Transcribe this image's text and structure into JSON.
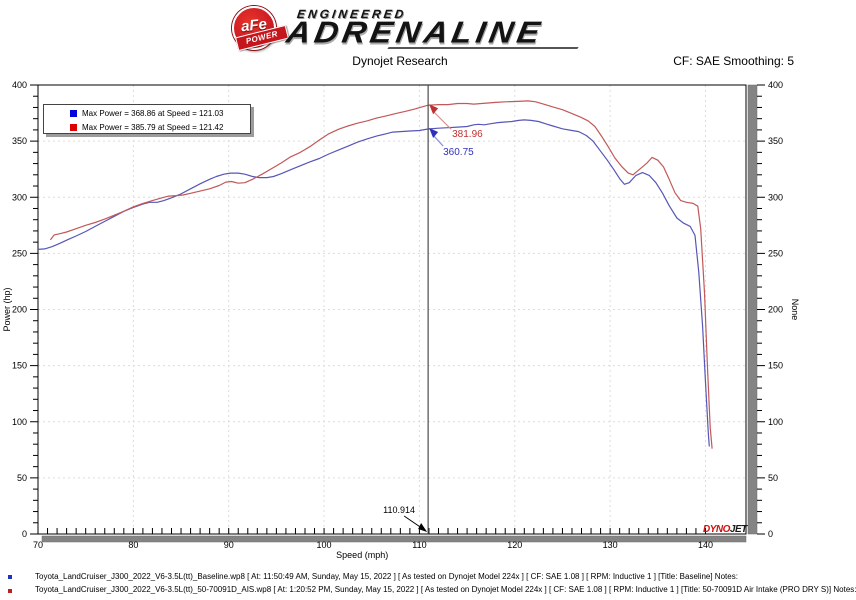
{
  "header": {
    "logo": {
      "afe": "aFe",
      "power": "POWER",
      "engineered": "ENGINEERED",
      "adrenaline": "ADRENALINE"
    },
    "title": "Dynojet Research",
    "smoothing": "CF: SAE Smoothing: 5"
  },
  "chart_data": {
    "type": "line",
    "title": "Dynojet Research",
    "xlabel": "Speed (mph)",
    "ylabel_left": "Power (hp)",
    "ylabel_right": "None",
    "grid": true,
    "x_axis": {
      "min": 70,
      "max": 144.25,
      "ticks": [
        70,
        80,
        90,
        100,
        110,
        120,
        130,
        140
      ],
      "minor_step": 1
    },
    "y_axis": {
      "min": 0,
      "max": 400,
      "ticks": [
        0,
        50,
        100,
        150,
        200,
        250,
        300,
        350,
        400
      ],
      "minor_step": 10
    },
    "legend": [
      {
        "color": "#0000dd",
        "label": "Max Power = 368.86 at Speed = 121.03"
      },
      {
        "color": "#dd0000",
        "label": "Max Power = 385.79 at Speed = 121.42"
      }
    ],
    "cursor": {
      "x": 110.914,
      "label": "110.914",
      "red_value": "381.96",
      "blue_value": "360.75",
      "red_color": "#c03030",
      "blue_color": "#3030c0",
      "line_color": "#4d4d4d"
    },
    "watermark": {
      "dyno": "DYNO",
      "jet": "JET",
      "dyno_color": "#cc1111",
      "jet_color": "#1a1a1a"
    },
    "series": [
      {
        "name": "Baseline",
        "color": "#5656b8",
        "points": [
          [
            70,
            253.5
          ],
          [
            70.7,
            254
          ],
          [
            71.5,
            256
          ],
          [
            72.3,
            259
          ],
          [
            73.2,
            262.5
          ],
          [
            74,
            265.5
          ],
          [
            75,
            269.5
          ],
          [
            76,
            274
          ],
          [
            77,
            278.5
          ],
          [
            78,
            283
          ],
          [
            79,
            287.5
          ],
          [
            80,
            291
          ],
          [
            81,
            294
          ],
          [
            81.7,
            295.5
          ],
          [
            82.5,
            295.5
          ],
          [
            83.2,
            297
          ],
          [
            84,
            299.5
          ],
          [
            85,
            303
          ],
          [
            86,
            307.5
          ],
          [
            87,
            312
          ],
          [
            88,
            316
          ],
          [
            88.7,
            318.5
          ],
          [
            89.5,
            320.5
          ],
          [
            90.2,
            321.5
          ],
          [
            91,
            321.5
          ],
          [
            91.7,
            320.5
          ],
          [
            92.5,
            318.5
          ],
          [
            93.2,
            317.5
          ],
          [
            94,
            317.5
          ],
          [
            94.7,
            318.5
          ],
          [
            95.5,
            321
          ],
          [
            96.5,
            324.5
          ],
          [
            97.5,
            328
          ],
          [
            98.5,
            331.5
          ],
          [
            99.5,
            334.5
          ],
          [
            100.5,
            338.5
          ],
          [
            101.5,
            342
          ],
          [
            102.5,
            345.5
          ],
          [
            103.5,
            349
          ],
          [
            104.5,
            352
          ],
          [
            105.5,
            354.5
          ],
          [
            106.5,
            356.5
          ],
          [
            107.2,
            358
          ],
          [
            108,
            358.5
          ],
          [
            109,
            359
          ],
          [
            110,
            359.5
          ],
          [
            110.9,
            360.8
          ],
          [
            112,
            361.5
          ],
          [
            113,
            362
          ],
          [
            114,
            362.5
          ],
          [
            115,
            363
          ],
          [
            115.7,
            364.5
          ],
          [
            116.2,
            365
          ],
          [
            116.8,
            364.5
          ],
          [
            117.5,
            365.5
          ],
          [
            118.2,
            366.5
          ],
          [
            119,
            367
          ],
          [
            119.7,
            367.5
          ],
          [
            120.4,
            368.5
          ],
          [
            121,
            368.9
          ],
          [
            121.7,
            368.5
          ],
          [
            122.5,
            367.5
          ],
          [
            123.2,
            365.5
          ],
          [
            124,
            363.5
          ],
          [
            125,
            361
          ],
          [
            126,
            359.5
          ],
          [
            126.7,
            358.5
          ],
          [
            127.5,
            355
          ],
          [
            128.2,
            350
          ],
          [
            129,
            341
          ],
          [
            129.7,
            333
          ],
          [
            130.4,
            324.5
          ],
          [
            131,
            316.5
          ],
          [
            131.5,
            311.5
          ],
          [
            132,
            313
          ],
          [
            132.7,
            319.5
          ],
          [
            133.4,
            322
          ],
          [
            134.1,
            319.5
          ],
          [
            134.8,
            313
          ],
          [
            135.5,
            303.5
          ],
          [
            136.2,
            292.5
          ],
          [
            137,
            281.5
          ],
          [
            137.7,
            277
          ],
          [
            138.4,
            274
          ],
          [
            138.9,
            266
          ],
          [
            139.3,
            233
          ],
          [
            139.7,
            185
          ],
          [
            140,
            135
          ],
          [
            140.3,
            90
          ],
          [
            140.4,
            78
          ]
        ]
      },
      {
        "name": "50-70091D Air Intake (PRO DRY S)",
        "color": "#c25858",
        "points": [
          [
            71.3,
            262
          ],
          [
            71.7,
            266.5
          ],
          [
            72.3,
            267.5
          ],
          [
            73,
            269
          ],
          [
            74,
            272
          ],
          [
            75,
            275
          ],
          [
            76,
            277.5
          ],
          [
            77,
            280.5
          ],
          [
            78,
            284
          ],
          [
            79,
            287.5
          ],
          [
            80,
            291.5
          ],
          [
            81,
            294.5
          ],
          [
            82,
            297
          ],
          [
            83,
            299.5
          ],
          [
            83.7,
            301
          ],
          [
            84.5,
            301.5
          ],
          [
            85.2,
            302
          ],
          [
            86,
            303.5
          ],
          [
            87,
            305.5
          ],
          [
            88,
            307.5
          ],
          [
            89,
            310.5
          ],
          [
            89.7,
            313.5
          ],
          [
            90.3,
            314
          ],
          [
            91,
            312.5
          ],
          [
            91.7,
            313
          ],
          [
            92.5,
            316
          ],
          [
            93.5,
            320.5
          ],
          [
            94.5,
            325.5
          ],
          [
            95.5,
            330.5
          ],
          [
            96.5,
            336
          ],
          [
            97.5,
            340
          ],
          [
            98.5,
            345
          ],
          [
            99.5,
            351
          ],
          [
            100.5,
            356.5
          ],
          [
            101.5,
            360.5
          ],
          [
            102.5,
            363.5
          ],
          [
            103.5,
            366
          ],
          [
            104.5,
            368
          ],
          [
            105.5,
            370.5
          ],
          [
            106.5,
            372.5
          ],
          [
            107.5,
            374.5
          ],
          [
            108.5,
            376.5
          ],
          [
            109.5,
            378.5
          ],
          [
            110.9,
            382
          ],
          [
            112,
            382.5
          ],
          [
            113,
            382.5
          ],
          [
            114,
            383.5
          ],
          [
            115,
            383.5
          ],
          [
            115.7,
            383
          ],
          [
            116.5,
            383.5
          ],
          [
            117.2,
            384
          ],
          [
            118,
            384.5
          ],
          [
            119,
            385
          ],
          [
            120,
            385.3
          ],
          [
            121.4,
            385.8
          ],
          [
            122.2,
            385
          ],
          [
            123,
            383
          ],
          [
            124,
            380.5
          ],
          [
            125,
            378
          ],
          [
            126,
            374.5
          ],
          [
            127,
            371
          ],
          [
            127.7,
            368
          ],
          [
            128.4,
            363
          ],
          [
            129.1,
            354.5
          ],
          [
            129.8,
            345
          ],
          [
            130.5,
            335
          ],
          [
            131.2,
            327.5
          ],
          [
            131.9,
            321.5
          ],
          [
            132.4,
            320
          ],
          [
            133.1,
            325
          ],
          [
            133.8,
            330
          ],
          [
            134.4,
            335.5
          ],
          [
            135,
            333
          ],
          [
            135.6,
            327
          ],
          [
            136.2,
            316
          ],
          [
            136.8,
            304
          ],
          [
            137.4,
            297
          ],
          [
            138,
            295.5
          ],
          [
            138.7,
            294.5
          ],
          [
            139.2,
            292
          ],
          [
            139.5,
            272
          ],
          [
            139.9,
            215
          ],
          [
            140.2,
            150
          ],
          [
            140.5,
            95
          ],
          [
            140.7,
            76
          ]
        ]
      }
    ]
  },
  "footer": {
    "runs": [
      {
        "marker_color": "#2233bb",
        "text": "Toyota_LandCruiser_J300_2022_V6-3.5L(tt)_Baseline.wp8 [ At: 11:50:49 AM, Sunday, May 15, 2022 ] [ As tested on Dynojet Model 224x ] [ CF: SAE 1.08 ] [ RPM: Inductive 1 ] [Title: Baseline]  Notes:"
      },
      {
        "marker_color": "#bb2222",
        "text": "Toyota_LandCruiser_J300_2022_V6-3.5L(tt)_50-70091D_AIS.wp8 [ At: 1:20:52 PM, Sunday, May 15, 2022 ] [ As tested on Dynojet Model 224x ] [ CF: SAE 1.08 ] [ RPM: Inductive 1 ] [Title: 50-70091D Air Intake (PRO DRY S)]  Notes:"
      }
    ]
  }
}
